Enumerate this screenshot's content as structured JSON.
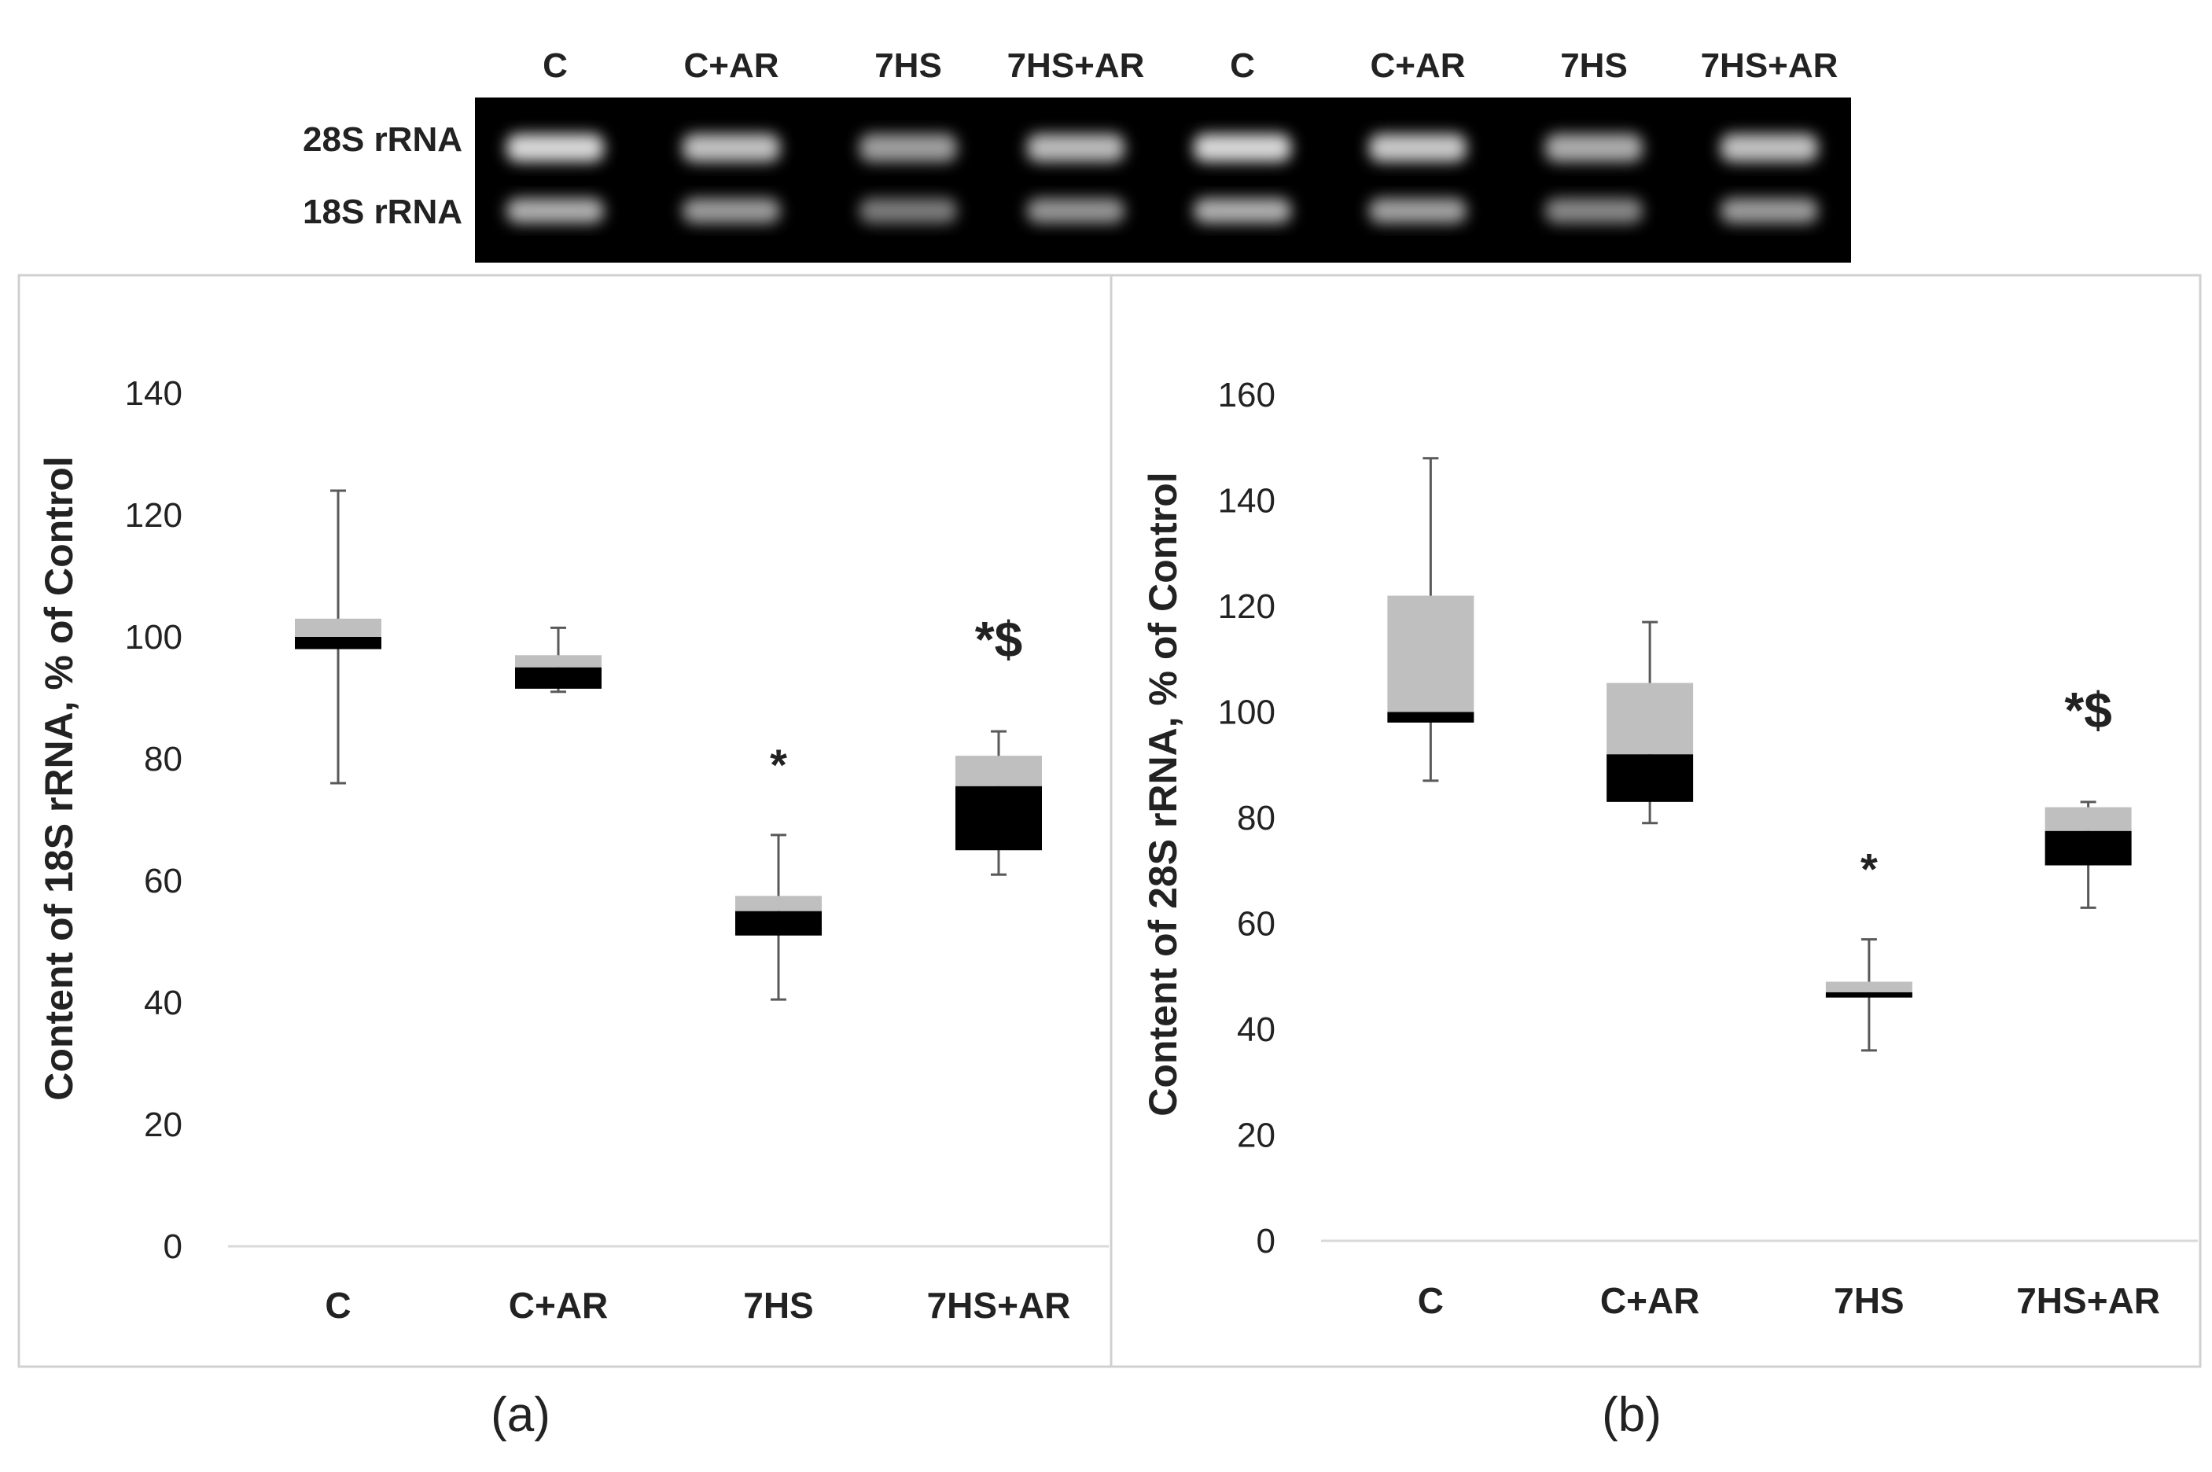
{
  "gel": {
    "lane_labels": [
      "C",
      "C+AR",
      "7HS",
      "7HS+AR",
      "C",
      "C+AR",
      "7HS",
      "7HS+AR"
    ],
    "band_labels": [
      "28S rRNA",
      "18S rRNA"
    ],
    "lane_intensity": [
      1.0,
      0.85,
      0.6,
      0.8,
      1.0,
      0.9,
      0.7,
      0.85
    ]
  },
  "colors": {
    "box_upper": "#bfbfbf",
    "box_lower": "#000000",
    "whisker": "#595959",
    "axis": "#d9d9d9",
    "panel_border": "#d0d0d0"
  },
  "chart_data": [
    {
      "type": "boxplot",
      "panel_label": "(a)",
      "ylabel": "Content of 18S rRNA, % of Control",
      "ylim": [
        0,
        140
      ],
      "yticks": [
        0,
        20,
        40,
        60,
        80,
        100,
        120,
        140
      ],
      "categories": [
        "C",
        "C+AR",
        "7HS",
        "7HS+AR"
      ],
      "boxes": [
        {
          "min": 76,
          "q1": 98,
          "median": 100,
          "q3": 103,
          "max": 124,
          "annotation": ""
        },
        {
          "min": 91,
          "q1": 91.5,
          "median": 95,
          "q3": 97,
          "max": 101.5,
          "annotation": ""
        },
        {
          "min": 40.5,
          "q1": 51,
          "median": 55,
          "q3": 57.5,
          "max": 67.5,
          "annotation": "*"
        },
        {
          "min": 61,
          "q1": 65,
          "median": 75.5,
          "q3": 80.5,
          "max": 84.5,
          "annotation": "*$"
        }
      ]
    },
    {
      "type": "boxplot",
      "panel_label": "(b)",
      "ylabel": "Content of 28S rRNA, % of Control",
      "ylim": [
        0,
        160
      ],
      "yticks": [
        0,
        20,
        40,
        60,
        80,
        100,
        120,
        140,
        160
      ],
      "categories": [
        "C",
        "C+AR",
        "7HS",
        "7HS+AR"
      ],
      "boxes": [
        {
          "min": 87,
          "q1": 98,
          "median": 100,
          "q3": 122,
          "max": 148,
          "annotation": ""
        },
        {
          "min": 79,
          "q1": 83,
          "median": 92,
          "q3": 105.5,
          "max": 117,
          "annotation": ""
        },
        {
          "min": 36,
          "q1": 46,
          "median": 47,
          "q3": 49,
          "max": 57,
          "annotation": "*"
        },
        {
          "min": 63,
          "q1": 71,
          "median": 77.5,
          "q3": 82,
          "max": 83,
          "annotation": "*$"
        }
      ]
    }
  ]
}
